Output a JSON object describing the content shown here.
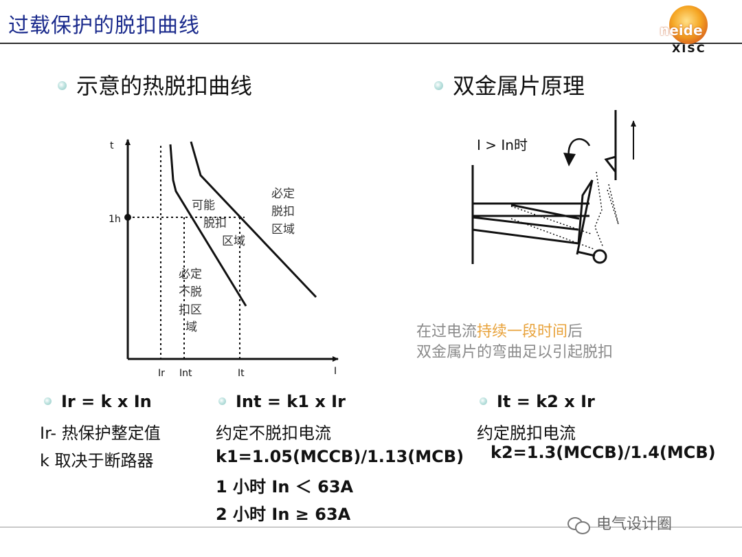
{
  "title": "过载保护的脱扣曲线",
  "logo": {
    "brand": "neide",
    "code": "XISC"
  },
  "left_section": {
    "heading": "示意的热脱扣曲线",
    "diagram": {
      "t_axis_label": "t",
      "i_axis_label": "I",
      "tick_1h": "1h",
      "x_ticks": [
        "Ir",
        "Int",
        "It"
      ],
      "region_possible": [
        "可能",
        "脱扣",
        "区域"
      ],
      "region_must_trip": [
        "必定",
        "脱扣",
        "区域"
      ],
      "region_no_trip": [
        "必定",
        "不脱",
        "扣区",
        "域"
      ]
    }
  },
  "right_section": {
    "heading": "双金属片原理",
    "condition": "I > In时",
    "caption": {
      "line1_pre": "在过电流",
      "line1_highlight": "持续一段时间",
      "line1_post": "后",
      "line2": "双金属片的弯曲足以引起脱扣"
    }
  },
  "formulas": {
    "col1": {
      "formula": "Ir = k x In",
      "lines": [
        "Ir- 热保护整定值",
        "k 取决于断路器"
      ]
    },
    "col2": {
      "formula": "Int = k1 x Ir",
      "lines": [
        "约定不脱扣电流",
        "k1=1.05(MCCB)/1.13(MCB)",
        "1 小时 In ＜ 63A",
        "2 小时 In ≥ 63A"
      ]
    },
    "col3": {
      "formula": "It = k2 x Ir",
      "lines": [
        "约定脱扣电流",
        "k2=1.3(MCCB)/1.4(MCB)"
      ]
    }
  },
  "watermark": "电气设计圈"
}
